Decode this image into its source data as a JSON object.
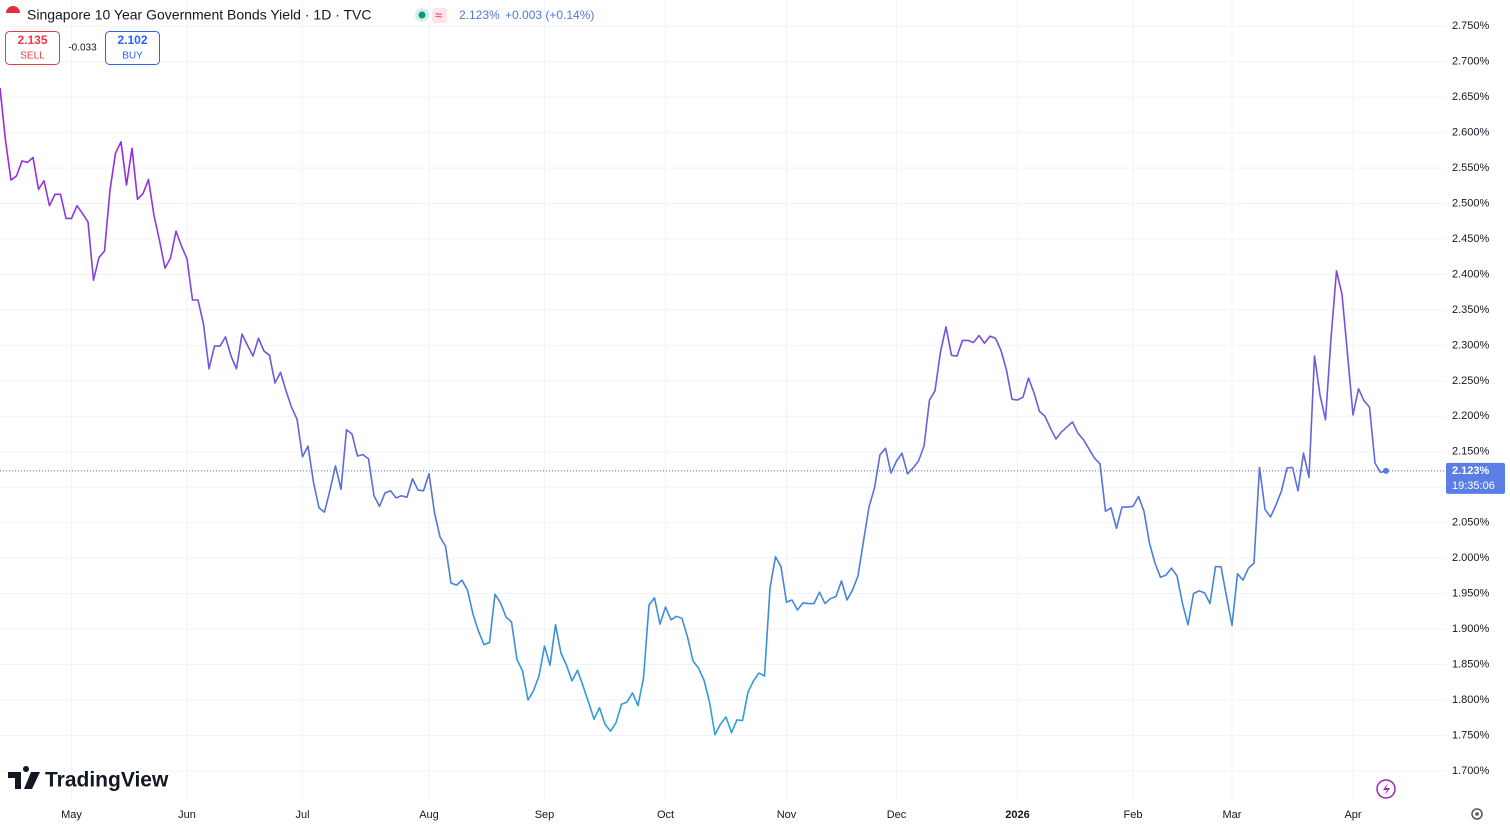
{
  "chart_data": {
    "type": "line",
    "title": "Singapore 10 Year Government Bonds Yield · 1D · TVC",
    "quote": {
      "last": "2.123%",
      "change": "+0.003 (+0.14%)",
      "sell": 2.135,
      "sell_label": "SELL",
      "spread": -0.033,
      "buy": 2.102,
      "buy_label": "BUY"
    },
    "brand": "TradingView",
    "last_price": {
      "value": 2.123,
      "label": "2.123%"
    },
    "countdown": "19:35:06",
    "gradient": [
      "#9c27e0",
      "#2aa3d8"
    ],
    "grid": true,
    "ylim": [
      1.659,
      2.787
    ],
    "yticks": [
      {
        "value": 1.7,
        "label": "1.700%"
      },
      {
        "value": 1.75,
        "label": "1.750%"
      },
      {
        "value": 1.8,
        "label": "1.800%"
      },
      {
        "value": 1.85,
        "label": "1.850%"
      },
      {
        "value": 1.9,
        "label": "1.900%"
      },
      {
        "value": 1.95,
        "label": "1.950%"
      },
      {
        "value": 2.0,
        "label": "2.000%"
      },
      {
        "value": 2.05,
        "label": "2.050%"
      },
      {
        "value": 2.1,
        "label": "2.100%"
      },
      {
        "value": 2.15,
        "label": "2.150%"
      },
      {
        "value": 2.2,
        "label": "2.200%"
      },
      {
        "value": 2.25,
        "label": "2.250%"
      },
      {
        "value": 2.3,
        "label": "2.300%"
      },
      {
        "value": 2.35,
        "label": "2.350%"
      },
      {
        "value": 2.4,
        "label": "2.400%"
      },
      {
        "value": 2.45,
        "label": "2.450%"
      },
      {
        "value": 2.5,
        "label": "2.500%"
      },
      {
        "value": 2.55,
        "label": "2.550%"
      },
      {
        "value": 2.6,
        "label": "2.600%"
      },
      {
        "value": 2.65,
        "label": "2.650%"
      },
      {
        "value": 2.7,
        "label": "2.700%"
      },
      {
        "value": 2.75,
        "label": "2.750%"
      }
    ],
    "categories": [
      null,
      null,
      null,
      null,
      null,
      null,
      null,
      null,
      null,
      null,
      null,
      null,
      null,
      "May",
      null,
      null,
      null,
      null,
      null,
      null,
      null,
      null,
      null,
      null,
      null,
      null,
      null,
      null,
      null,
      null,
      null,
      null,
      null,
      null,
      "Jun",
      null,
      null,
      null,
      null,
      null,
      null,
      null,
      null,
      null,
      null,
      null,
      null,
      null,
      null,
      null,
      null,
      null,
      null,
      null,
      null,
      "Jul",
      null,
      null,
      null,
      null,
      null,
      null,
      null,
      null,
      null,
      null,
      null,
      null,
      null,
      null,
      null,
      null,
      null,
      null,
      null,
      null,
      null,
      null,
      "Aug",
      null,
      null,
      null,
      null,
      null,
      null,
      null,
      null,
      null,
      null,
      null,
      null,
      null,
      null,
      null,
      null,
      null,
      null,
      null,
      null,
      "Sep",
      null,
      null,
      null,
      null,
      null,
      null,
      null,
      null,
      null,
      null,
      null,
      null,
      null,
      null,
      null,
      null,
      null,
      null,
      null,
      null,
      null,
      "Oct",
      null,
      null,
      null,
      null,
      null,
      null,
      null,
      null,
      null,
      null,
      null,
      null,
      null,
      null,
      null,
      null,
      null,
      null,
      null,
      null,
      null,
      "Nov",
      null,
      null,
      null,
      null,
      null,
      null,
      null,
      null,
      null,
      null,
      null,
      null,
      null,
      null,
      null,
      null,
      null,
      null,
      null,
      "Dec",
      null,
      null,
      null,
      null,
      null,
      null,
      null,
      null,
      null,
      null,
      null,
      null,
      null,
      null,
      null,
      null,
      null,
      null,
      null,
      null,
      null,
      "2026",
      null,
      null,
      null,
      null,
      null,
      null,
      null,
      null,
      null,
      null,
      null,
      null,
      null,
      null,
      null,
      null,
      null,
      null,
      null,
      null,
      "Feb",
      null,
      null,
      null,
      null,
      null,
      null,
      null,
      null,
      null,
      null,
      null,
      null,
      null,
      null,
      null,
      null,
      null,
      "Mar",
      null,
      null,
      null,
      null,
      null,
      null,
      null,
      null,
      null,
      null,
      null,
      null,
      null,
      null,
      null,
      null,
      null,
      null,
      null,
      null,
      null,
      "Apr",
      null,
      null,
      null,
      null,
      null,
      null
    ],
    "bold_category": "2026",
    "values": [
      2.663,
      2.589,
      2.533,
      2.539,
      2.56,
      2.558,
      2.565,
      2.52,
      2.532,
      2.497,
      2.513,
      2.513,
      2.479,
      2.479,
      2.497,
      2.486,
      2.474,
      2.392,
      2.424,
      2.433,
      2.519,
      2.571,
      2.587,
      2.526,
      2.578,
      2.506,
      2.514,
      2.534,
      2.483,
      2.448,
      2.409,
      2.423,
      2.461,
      2.44,
      2.422,
      2.364,
      2.364,
      2.33,
      2.267,
      2.299,
      2.299,
      2.312,
      2.285,
      2.267,
      2.316,
      2.3,
      2.285,
      2.31,
      2.292,
      2.286,
      2.247,
      2.262,
      2.236,
      2.213,
      2.196,
      2.143,
      2.158,
      2.107,
      2.071,
      2.065,
      2.096,
      2.13,
      2.097,
      2.181,
      2.175,
      2.144,
      2.146,
      2.14,
      2.088,
      2.073,
      2.092,
      2.095,
      2.085,
      2.088,
      2.086,
      2.112,
      2.096,
      2.095,
      2.119,
      2.064,
      2.03,
      2.017,
      1.965,
      1.962,
      1.969,
      1.955,
      1.921,
      1.897,
      1.878,
      1.881,
      1.949,
      1.937,
      1.917,
      1.91,
      1.857,
      1.841,
      1.8,
      1.813,
      1.834,
      1.876,
      1.849,
      1.906,
      1.866,
      1.849,
      1.827,
      1.842,
      1.82,
      1.797,
      1.773,
      1.789,
      1.766,
      1.756,
      1.768,
      1.794,
      1.797,
      1.81,
      1.792,
      1.831,
      1.934,
      1.944,
      1.907,
      1.931,
      1.913,
      1.918,
      1.915,
      1.889,
      1.855,
      1.845,
      1.828,
      1.797,
      1.751,
      1.766,
      1.776,
      1.754,
      1.772,
      1.771,
      1.811,
      1.827,
      1.838,
      1.834,
      1.958,
      2.002,
      1.988,
      1.938,
      1.941,
      1.927,
      1.937,
      1.936,
      1.936,
      1.952,
      1.936,
      1.943,
      1.946,
      1.968,
      1.941,
      1.955,
      1.975,
      2.024,
      2.072,
      2.099,
      2.146,
      2.155,
      2.12,
      2.137,
      2.148,
      2.119,
      2.127,
      2.137,
      2.158,
      2.223,
      2.236,
      2.291,
      2.326,
      2.286,
      2.285,
      2.307,
      2.307,
      2.304,
      2.314,
      2.303,
      2.313,
      2.31,
      2.293,
      2.265,
      2.224,
      2.223,
      2.227,
      2.254,
      2.233,
      2.207,
      2.2,
      2.183,
      2.168,
      2.178,
      2.185,
      2.192,
      2.176,
      2.167,
      2.154,
      2.141,
      2.133,
      2.066,
      2.071,
      2.042,
      2.072,
      2.072,
      2.073,
      2.087,
      2.066,
      2.021,
      1.993,
      1.973,
      1.976,
      1.986,
      1.975,
      1.936,
      1.906,
      1.95,
      1.954,
      1.951,
      1.936,
      1.988,
      1.988,
      1.946,
      1.905,
      1.978,
      1.969,
      1.986,
      1.993,
      2.128,
      2.069,
      2.058,
      2.075,
      2.095,
      2.127,
      2.128,
      2.095,
      2.148,
      2.114,
      2.285,
      2.23,
      2.195,
      2.31,
      2.405,
      2.372,
      2.288,
      2.202,
      2.239,
      2.222,
      2.213,
      2.134,
      2.121,
      2.123
    ]
  }
}
